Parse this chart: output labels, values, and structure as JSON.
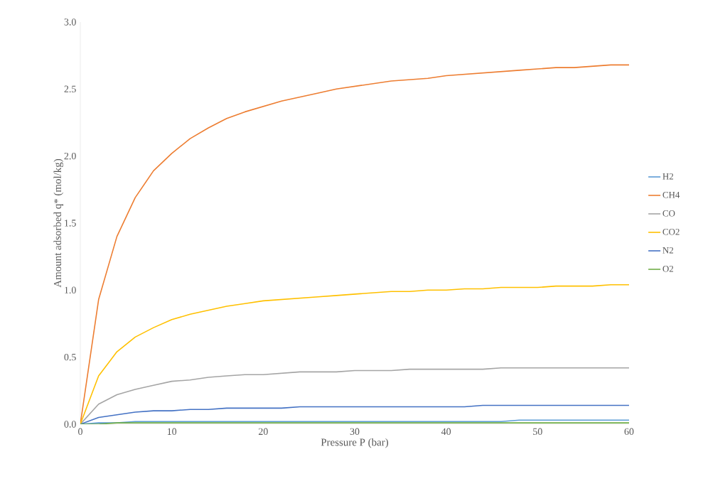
{
  "chart_data": {
    "type": "line",
    "xlabel": "Pressure P (bar)",
    "ylabel": "Amount adsorbed q* (mol/kg)",
    "x": [
      0,
      2,
      4,
      6,
      8,
      10,
      12,
      14,
      16,
      18,
      20,
      22,
      24,
      26,
      28,
      30,
      32,
      34,
      36,
      38,
      40,
      42,
      44,
      46,
      48,
      50,
      52,
      54,
      56,
      58,
      60
    ],
    "xlim": [
      0,
      60
    ],
    "xticks": [
      0,
      10,
      20,
      30,
      40,
      50,
      60
    ],
    "ylim": [
      0,
      3.0
    ],
    "yticks": [
      {
        "value": 0,
        "label": "0.0"
      },
      {
        "value": 0.5,
        "label": "0.5"
      },
      {
        "value": 1.0,
        "label": "1.0"
      },
      {
        "value": 1.5,
        "label": "1.5"
      },
      {
        "value": 2.0,
        "label": "2.0"
      },
      {
        "value": 2.5,
        "label": "2.5"
      },
      {
        "value": 3.0,
        "label": "3.0"
      }
    ],
    "legend": "right",
    "grid": false,
    "series": [
      {
        "name": "H2",
        "color": "#5b9bd5",
        "values": [
          0,
          0.01,
          0.01,
          0.02,
          0.02,
          0.02,
          0.02,
          0.02,
          0.02,
          0.02,
          0.02,
          0.02,
          0.02,
          0.02,
          0.02,
          0.02,
          0.02,
          0.02,
          0.02,
          0.02,
          0.02,
          0.02,
          0.02,
          0.02,
          0.03,
          0.03,
          0.03,
          0.03,
          0.03,
          0.03,
          0.03
        ]
      },
      {
        "name": "CH4",
        "color": "#ed7d31",
        "values": [
          0,
          0.93,
          1.4,
          1.69,
          1.89,
          2.02,
          2.13,
          2.21,
          2.28,
          2.33,
          2.37,
          2.41,
          2.44,
          2.47,
          2.5,
          2.52,
          2.54,
          2.56,
          2.57,
          2.58,
          2.6,
          2.61,
          2.62,
          2.63,
          2.64,
          2.65,
          2.66,
          2.66,
          2.67,
          2.68,
          2.68
        ]
      },
      {
        "name": "CO",
        "color": "#a5a5a5",
        "values": [
          0,
          0.15,
          0.22,
          0.26,
          0.29,
          0.32,
          0.33,
          0.35,
          0.36,
          0.37,
          0.37,
          0.38,
          0.39,
          0.39,
          0.39,
          0.4,
          0.4,
          0.4,
          0.41,
          0.41,
          0.41,
          0.41,
          0.41,
          0.42,
          0.42,
          0.42,
          0.42,
          0.42,
          0.42,
          0.42,
          0.42
        ]
      },
      {
        "name": "CO2",
        "color": "#ffc000",
        "values": [
          0,
          0.36,
          0.54,
          0.65,
          0.72,
          0.78,
          0.82,
          0.85,
          0.88,
          0.9,
          0.92,
          0.93,
          0.94,
          0.95,
          0.96,
          0.97,
          0.98,
          0.99,
          0.99,
          1.0,
          1.0,
          1.01,
          1.01,
          1.02,
          1.02,
          1.02,
          1.03,
          1.03,
          1.03,
          1.04,
          1.04
        ]
      },
      {
        "name": "N2",
        "color": "#4472c4",
        "values": [
          0,
          0.05,
          0.07,
          0.09,
          0.1,
          0.1,
          0.11,
          0.11,
          0.12,
          0.12,
          0.12,
          0.12,
          0.13,
          0.13,
          0.13,
          0.13,
          0.13,
          0.13,
          0.13,
          0.13,
          0.13,
          0.13,
          0.14,
          0.14,
          0.14,
          0.14,
          0.14,
          0.14,
          0.14,
          0.14,
          0.14
        ]
      },
      {
        "name": "O2",
        "color": "#70ad47",
        "values": [
          0,
          0.0,
          0.01,
          0.01,
          0.01,
          0.01,
          0.01,
          0.01,
          0.01,
          0.01,
          0.01,
          0.01,
          0.01,
          0.01,
          0.01,
          0.01,
          0.01,
          0.01,
          0.01,
          0.01,
          0.01,
          0.01,
          0.01,
          0.01,
          0.01,
          0.01,
          0.01,
          0.01,
          0.01,
          0.01,
          0.01
        ]
      }
    ]
  }
}
